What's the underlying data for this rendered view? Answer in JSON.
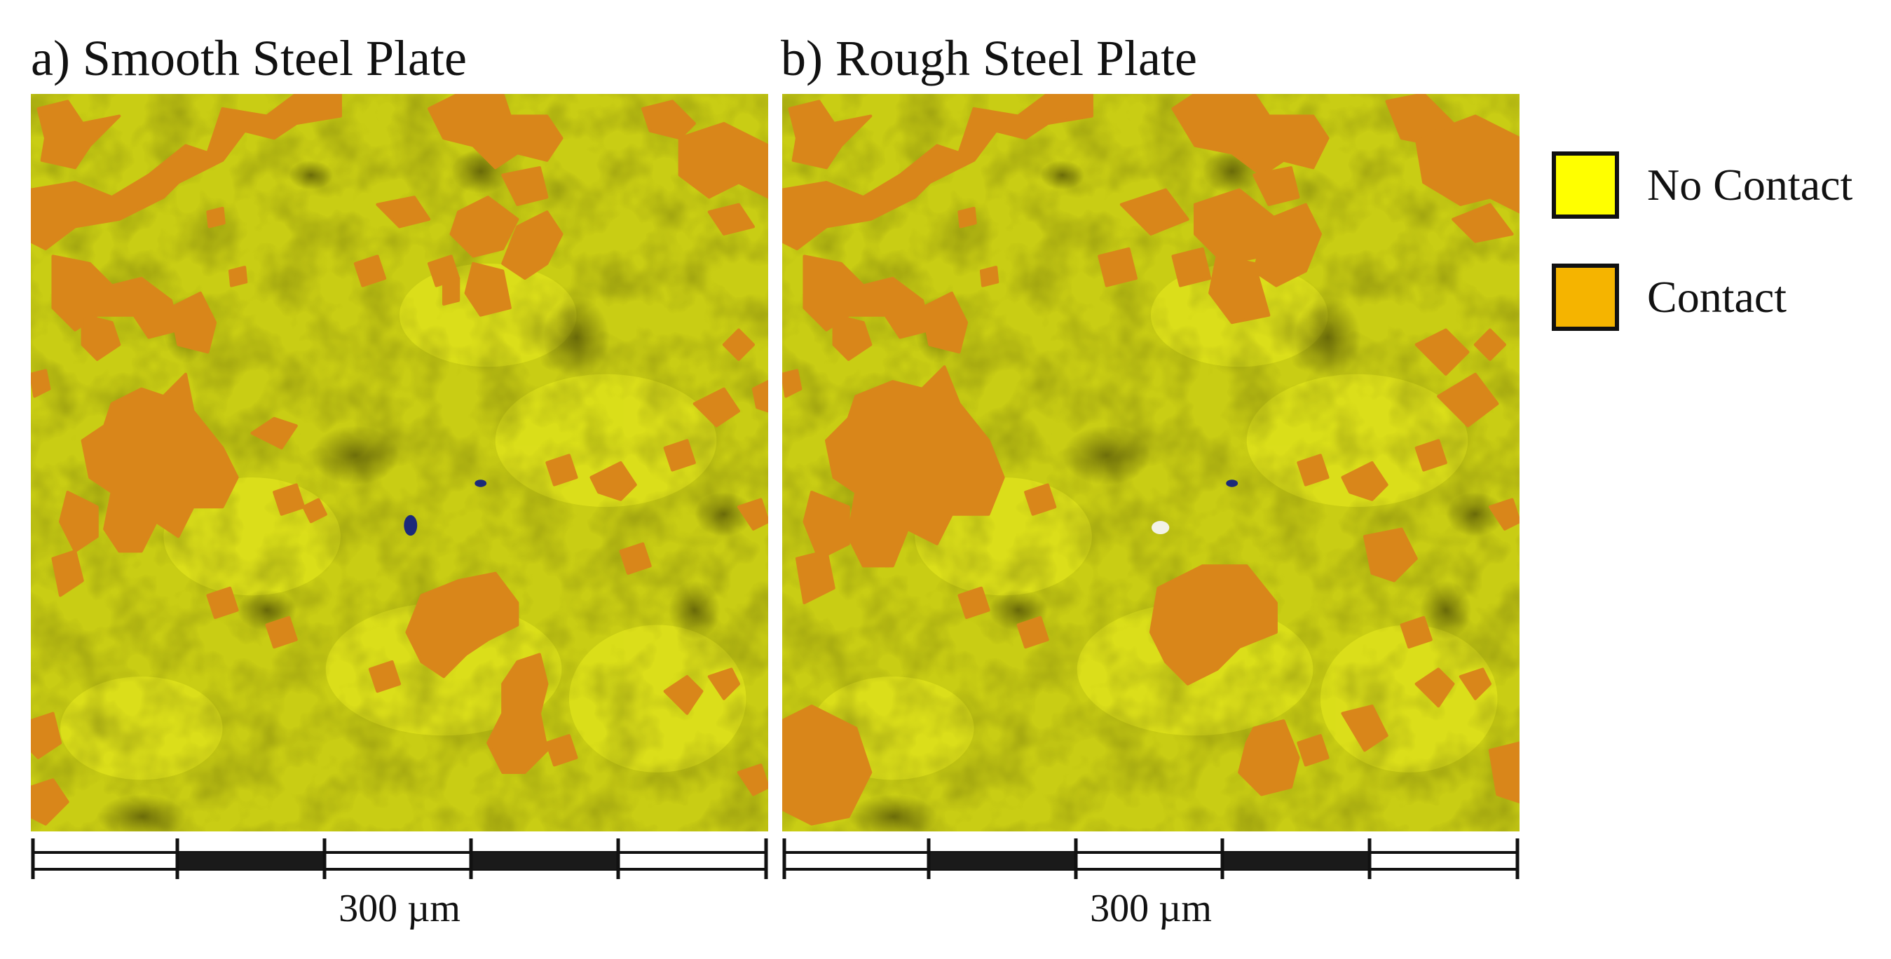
{
  "panels": [
    {
      "title": "a) Smooth Steel Plate",
      "scale_label": "300 µm"
    },
    {
      "title": "b) Rough Steel Plate",
      "scale_label": "300 µm"
    }
  ],
  "legend": [
    {
      "label": "No Contact",
      "color": "#ffff00"
    },
    {
      "label": "Contact",
      "color": "#f5b400"
    }
  ],
  "colors": {
    "surface_base": "#c9cd14",
    "surface_highlight": "#e6ea1e",
    "surface_shadow": "#6a6a0a",
    "contact_patch": "#d9861a"
  }
}
